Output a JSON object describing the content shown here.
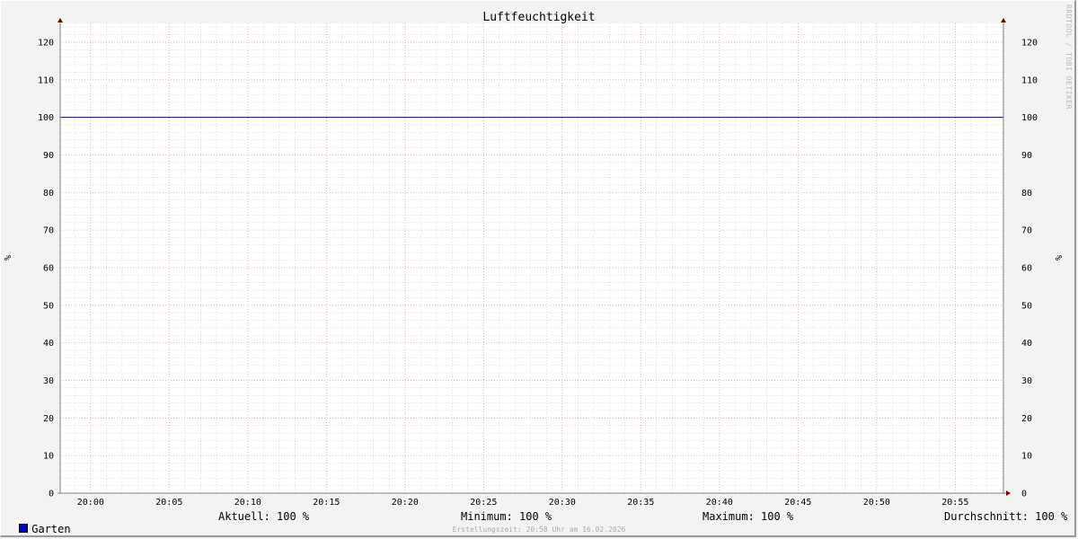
{
  "chart_data": {
    "type": "line",
    "title": "Luftfeuchtigkeit",
    "ylabel": "%",
    "ylabel_right": "%",
    "ylim": [
      0,
      125
    ],
    "yticks": [
      0,
      10,
      20,
      30,
      40,
      50,
      60,
      70,
      80,
      90,
      100,
      110,
      120
    ],
    "xlim": [
      "19:58",
      "20:58"
    ],
    "xticks": [
      "20:00",
      "20:05",
      "20:10",
      "20:15",
      "20:20",
      "20:25",
      "20:30",
      "20:35",
      "20:40",
      "20:45",
      "20:50",
      "20:55"
    ],
    "grid": true,
    "series": [
      {
        "name": "Garten",
        "color": "#0000cc",
        "x": [
          "19:58",
          "20:58"
        ],
        "values": [
          100,
          100
        ]
      }
    ],
    "legend": {
      "name": "Garten",
      "aktuell": "Aktuell: 100 %",
      "minimum": "Minimum: 100 %",
      "maximum": "Maximum: 100 %",
      "durchschnitt": "Durchschnitt: 100 %"
    },
    "footer": "Erstellungszeit: 20:58 Uhr am 16.02.2026",
    "watermark": "RRDTOOL / TOBI OETIKER"
  },
  "colors": {
    "major_grid": "#e0a0a0",
    "minor_grid": "#cccccc",
    "axis": "#808080",
    "arrow": "#800000",
    "series": "#0000cc"
  }
}
